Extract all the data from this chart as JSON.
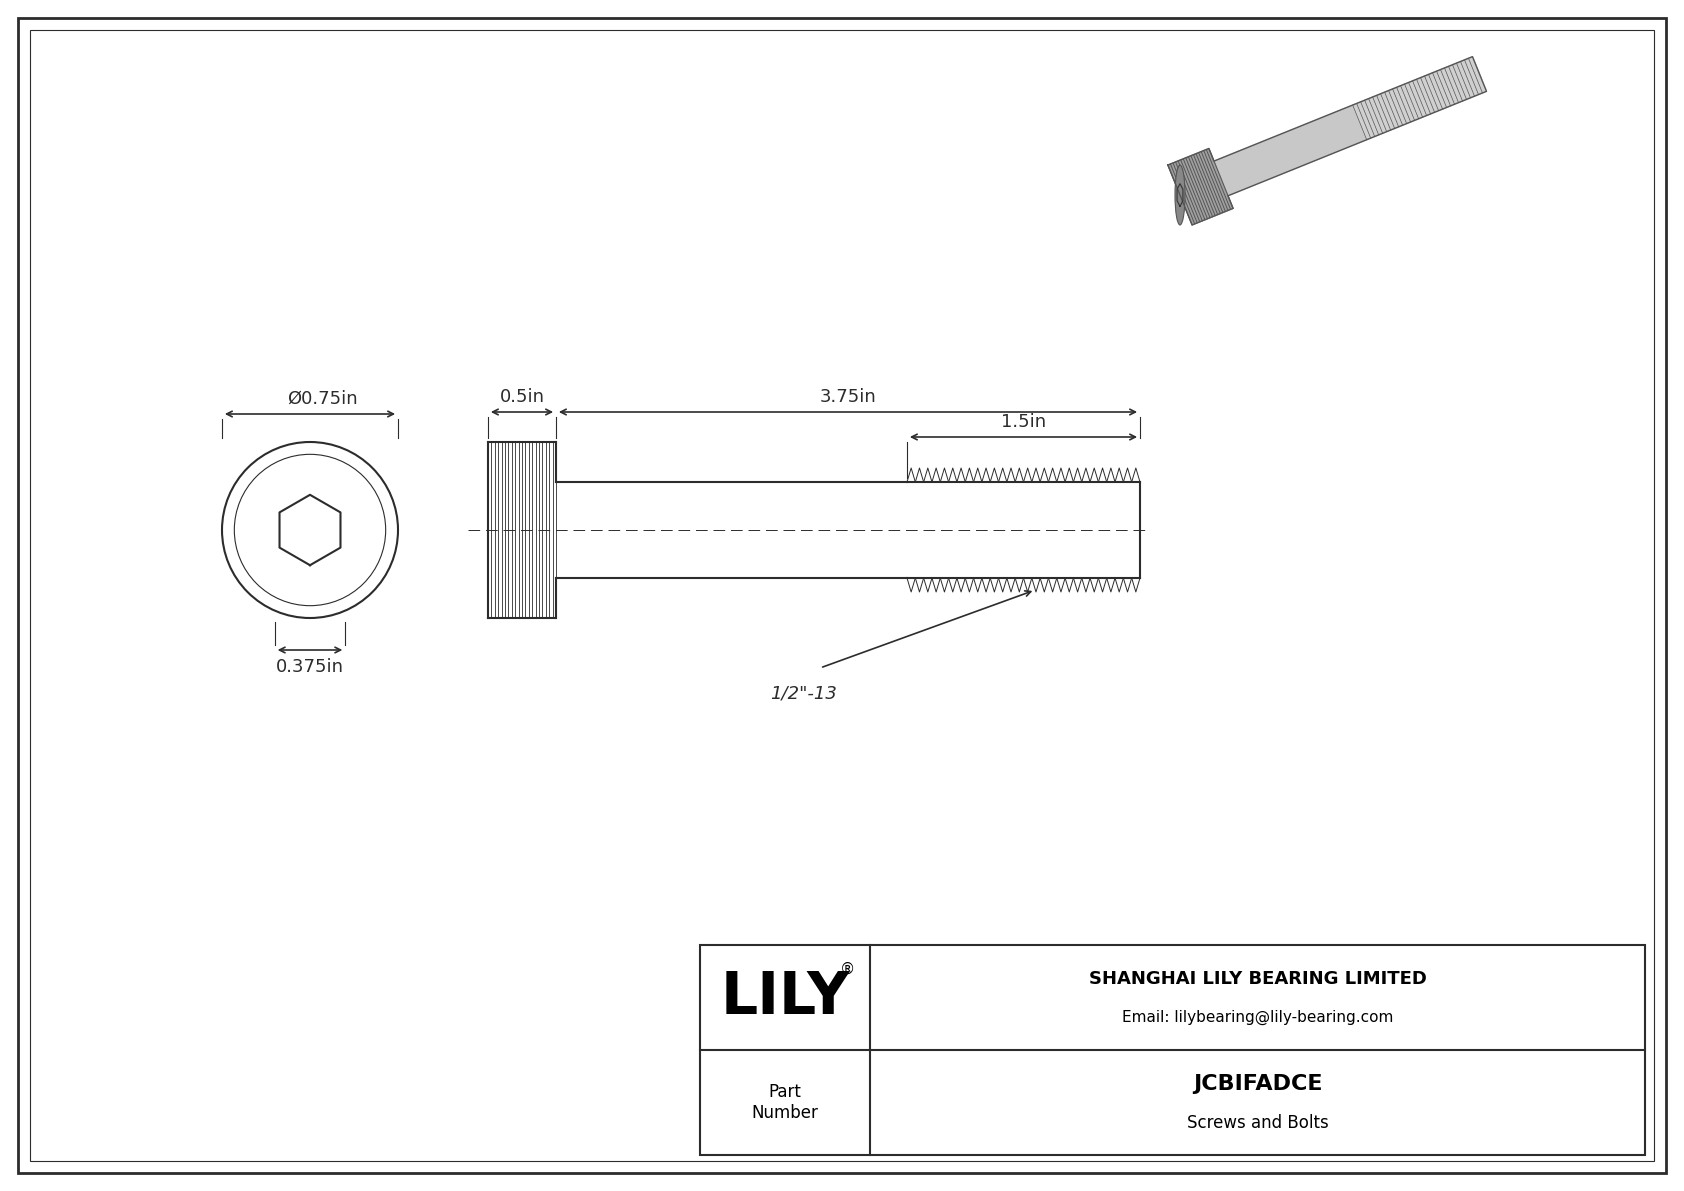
{
  "bg_color": "#ffffff",
  "border_color": "#2c2c2c",
  "line_color": "#2c2c2c",
  "title_company": "SHANGHAI LILY BEARING LIMITED",
  "title_email": "Email: lilybearing@lily-bearing.com",
  "part_number": "JCBIFADCE",
  "part_category": "Screws and Bolts",
  "part_label": "Part\nNumber",
  "lily_logo": "LILY",
  "dim_diameter": "Ø0.75in",
  "dim_head_height": "0.375in",
  "dim_head_width": "0.5in",
  "dim_shank": "3.75in",
  "dim_thread": "1.5in",
  "dim_thread_label": "1/2\"-13",
  "outer_border_lw": 2.0,
  "inner_border_lw": 1.0
}
